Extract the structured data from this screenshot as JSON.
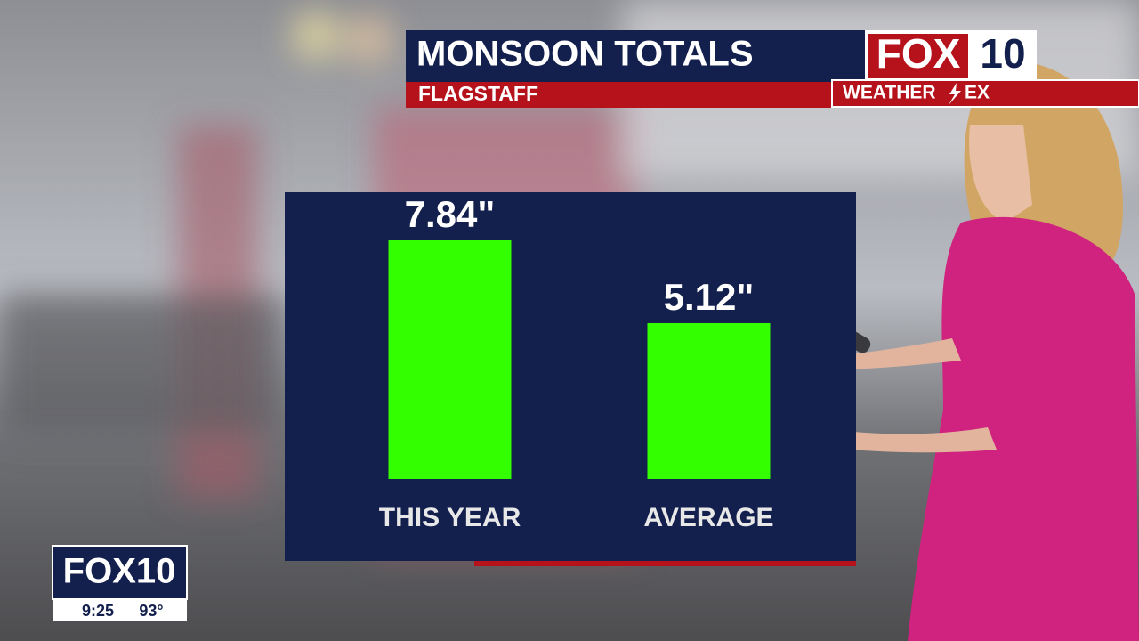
{
  "chart_data": {
    "type": "bar",
    "title": "MONSOON TOTALS",
    "subtitle": "FLAGSTAFF",
    "categories": [
      "THIS YEAR",
      "AVERAGE"
    ],
    "values": [
      7.84,
      5.12
    ],
    "value_labels": [
      "7.84\"",
      "5.12\""
    ],
    "color": "#33ff00"
  },
  "branding": {
    "logo_fox": "FOX",
    "logo_number": "10",
    "weather_strip": "WEATHER",
    "weather_strip_end": "EX"
  },
  "bug": {
    "logo": "FOX10",
    "time": "9:25",
    "temperature": "93°"
  }
}
